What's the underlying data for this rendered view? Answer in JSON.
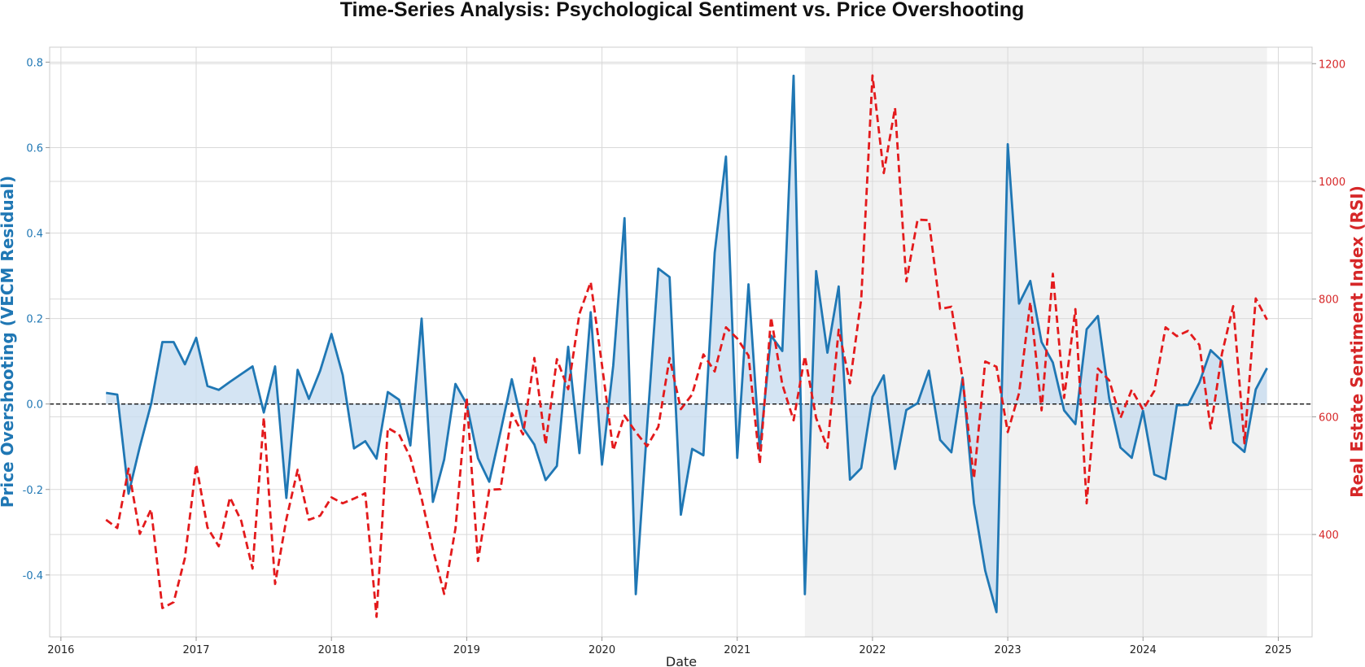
{
  "chart_data": {
    "type": "line",
    "title": "Time-Series Analysis: Psychological Sentiment vs. Price Overshooting",
    "xlabel": "Date",
    "ylabel_left": "Price Overshooting (VECM Residual)",
    "ylabel_right": "Real Estate Sentiment Index (RSI)",
    "x_ticks": [
      "2016",
      "2017",
      "2018",
      "2019",
      "2020",
      "2021",
      "2022",
      "2023",
      "2024",
      "2025"
    ],
    "y_left_ticks": [
      "-0.4",
      "-0.2",
      "0.0",
      "0.2",
      "0.4",
      "0.6",
      "0.8"
    ],
    "y_right_ticks": [
      "400",
      "600",
      "800",
      "1000",
      "1200"
    ],
    "xlim": [
      "2015-12",
      "2025-04"
    ],
    "ylim_left": [
      -0.545,
      0.835
    ],
    "ylim_right": [
      226,
      1228
    ],
    "grid": true,
    "zero_line": 0.0,
    "shaded_region": [
      "2021-07",
      "2024-12"
    ],
    "colors": {
      "residual": "#1f77b4",
      "residual_fill": "#c6dbef",
      "sentiment": "#e31a1c",
      "shade": "#f2f2f2",
      "grid": "#d9d9d9"
    },
    "dates": [
      "2016-05",
      "2016-06",
      "2016-07",
      "2016-08",
      "2016-09",
      "2016-10",
      "2016-11",
      "2016-12",
      "2017-01",
      "2017-02",
      "2017-03",
      "2017-04",
      "2017-05",
      "2017-06",
      "2017-07",
      "2017-08",
      "2017-09",
      "2017-10",
      "2017-11",
      "2017-12",
      "2018-01",
      "2018-02",
      "2018-03",
      "2018-04",
      "2018-05",
      "2018-06",
      "2018-07",
      "2018-08",
      "2018-09",
      "2018-10",
      "2018-11",
      "2018-12",
      "2019-01",
      "2019-02",
      "2019-03",
      "2019-04",
      "2019-05",
      "2019-06",
      "2019-07",
      "2019-08",
      "2019-09",
      "2019-10",
      "2019-11",
      "2019-12",
      "2020-01",
      "2020-02",
      "2020-03",
      "2020-04",
      "2020-05",
      "2020-06",
      "2020-07",
      "2020-08",
      "2020-09",
      "2020-10",
      "2020-11",
      "2020-12",
      "2021-01",
      "2021-02",
      "2021-03",
      "2021-04",
      "2021-05",
      "2021-06",
      "2021-07",
      "2021-08",
      "2021-09",
      "2021-10",
      "2021-11",
      "2021-12",
      "2022-01",
      "2022-02",
      "2022-03",
      "2022-04",
      "2022-05",
      "2022-06",
      "2022-07",
      "2022-08",
      "2022-09",
      "2022-10",
      "2022-11",
      "2022-12",
      "2023-01",
      "2023-02",
      "2023-03",
      "2023-04",
      "2023-05",
      "2023-06",
      "2023-07",
      "2023-08",
      "2023-09",
      "2023-10",
      "2023-11",
      "2023-12",
      "2024-01",
      "2024-02",
      "2024-03",
      "2024-04",
      "2024-05",
      "2024-06",
      "2024-07",
      "2024-08",
      "2024-09",
      "2024-10",
      "2024-11",
      "2024-12"
    ],
    "series": [
      {
        "name": "Price Overshooting (VECM Residual)",
        "axis": "left",
        "style": "solid",
        "values": [
          0.026,
          0.022,
          -0.21,
          -0.1,
          0.0,
          0.145,
          0.145,
          0.093,
          0.155,
          0.042,
          0.033,
          0.052,
          0.07,
          0.088,
          -0.02,
          0.088,
          -0.22,
          0.08,
          0.012,
          0.078,
          0.164,
          0.068,
          -0.104,
          -0.087,
          -0.128,
          0.028,
          0.01,
          -0.097,
          0.2,
          -0.229,
          -0.13,
          0.047,
          0.0,
          -0.127,
          -0.182,
          -0.065,
          0.058,
          -0.056,
          -0.095,
          -0.178,
          -0.145,
          0.134,
          -0.115,
          0.215,
          -0.142,
          0.09,
          0.435,
          -0.445,
          -0.056,
          0.317,
          0.297,
          -0.259,
          -0.105,
          -0.12,
          0.354,
          0.579,
          -0.126,
          0.28,
          -0.109,
          0.16,
          0.124,
          0.768,
          -0.445,
          0.311,
          0.12,
          0.275,
          -0.177,
          -0.15,
          0.017,
          0.067,
          -0.152,
          -0.014,
          0.002,
          0.078,
          -0.084,
          -0.113,
          0.062,
          -0.232,
          -0.39,
          -0.487,
          0.608,
          0.235,
          0.288,
          0.145,
          0.097,
          -0.015,
          -0.047,
          0.175,
          0.206,
          0.013,
          -0.102,
          -0.126,
          -0.016,
          -0.165,
          -0.176,
          -0.003,
          -0.002,
          0.05,
          0.126,
          0.101,
          -0.089,
          -0.112,
          0.034,
          0.084
        ]
      },
      {
        "name": "Real Estate Sentiment Index (RSI)",
        "axis": "right",
        "style": "dashed",
        "values": [
          425,
          411,
          512,
          401,
          443,
          275,
          285,
          360,
          519,
          412,
          380,
          463,
          423,
          342,
          599,
          316,
          426,
          510,
          425,
          432,
          463,
          453,
          461,
          470,
          260,
          581,
          570,
          531,
          461,
          375,
          299,
          410,
          632,
          355,
          476,
          477,
          606,
          570,
          700,
          553,
          698,
          647,
          775,
          829,
          688,
          543,
          602,
          574,
          550,
          583,
          700,
          613,
          638,
          706,
          677,
          752,
          733,
          704,
          520,
          769,
          655,
          594,
          703,
          598,
          547,
          748,
          657,
          800,
          1180,
          1014,
          1125,
          830,
          935,
          934,
          783,
          787,
          663,
          495,
          694,
          685,
          574,
          640,
          795,
          611,
          843,
          632,
          783,
          453,
          682,
          662,
          598,
          646,
          612,
          644,
          752,
          737,
          746,
          722,
          580,
          707,
          788,
          555,
          801,
          765
        ]
      }
    ]
  }
}
